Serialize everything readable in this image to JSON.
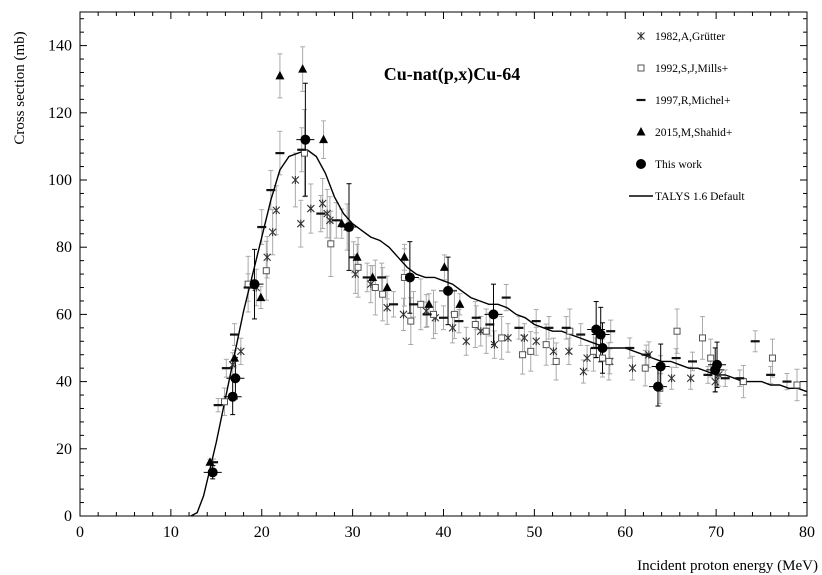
{
  "chart_data": {
    "type": "scatter",
    "title": "Cu-nat(p,x)Cu-64",
    "xlabel": "Incident proton energy (MeV)",
    "ylabel": "Cross section (mb)",
    "xlim": [
      0,
      80
    ],
    "ylim": [
      0,
      150
    ],
    "xticks": [
      "0",
      "10",
      "20",
      "30",
      "40",
      "50",
      "60",
      "70",
      "80"
    ],
    "yticks": [
      "0",
      "20",
      "40",
      "60",
      "80",
      "100",
      "120",
      "140"
    ],
    "grid": false,
    "legend_position": "top-right",
    "series": [
      {
        "name": "1982,A,Grütter",
        "marker": "asterisk",
        "points": [
          [
            16.8,
            45
          ],
          [
            17.7,
            49
          ],
          [
            19.4,
            68
          ],
          [
            20.6,
            77
          ],
          [
            21.2,
            84.5
          ],
          [
            21.6,
            91
          ],
          [
            23.7,
            100
          ],
          [
            24.3,
            87
          ],
          [
            25.4,
            91.5
          ],
          [
            26.7,
            93
          ],
          [
            27.2,
            90
          ],
          [
            27.5,
            88
          ],
          [
            29.4,
            86
          ],
          [
            30.3,
            72
          ],
          [
            32.0,
            69
          ],
          [
            33.8,
            62
          ],
          [
            35.6,
            60
          ],
          [
            38.1,
            61
          ],
          [
            39.1,
            59
          ],
          [
            41.0,
            56
          ],
          [
            42.5,
            52
          ],
          [
            44.1,
            55
          ],
          [
            45.6,
            51
          ],
          [
            47.1,
            53
          ],
          [
            48.9,
            53
          ],
          [
            50.2,
            52
          ],
          [
            52.1,
            49
          ],
          [
            53.8,
            49
          ],
          [
            55.4,
            43
          ],
          [
            55.8,
            47
          ],
          [
            58.3,
            46
          ],
          [
            60.8,
            44
          ],
          [
            62.6,
            48
          ],
          [
            65.1,
            41
          ],
          [
            67.2,
            41
          ],
          [
            69.9,
            40
          ],
          [
            70.3,
            42
          ]
        ]
      },
      {
        "name": "1992,S,J,Mills+",
        "marker": "open-square",
        "points": [
          [
            15.9,
            34
          ],
          [
            18.5,
            69
          ],
          [
            20.5,
            73
          ],
          [
            24.7,
            108
          ],
          [
            27.6,
            81
          ],
          [
            30.6,
            74
          ],
          [
            32.5,
            68
          ],
          [
            33.3,
            66
          ],
          [
            35.7,
            71
          ],
          [
            36.4,
            58
          ],
          [
            37.5,
            63
          ],
          [
            38.9,
            60
          ],
          [
            41.2,
            60
          ],
          [
            43.5,
            57
          ],
          [
            44.7,
            55
          ],
          [
            46.4,
            53
          ],
          [
            48.7,
            48
          ],
          [
            49.6,
            49
          ],
          [
            51.3,
            51
          ],
          [
            52.4,
            46
          ],
          [
            53.9,
            55
          ],
          [
            56.5,
            49
          ],
          [
            57.5,
            47
          ],
          [
            58.2,
            46
          ],
          [
            62.2,
            44
          ],
          [
            63.8,
            38
          ],
          [
            65.7,
            55
          ],
          [
            68.5,
            53
          ],
          [
            69.4,
            47
          ],
          [
            73.0,
            40
          ],
          [
            76.2,
            47
          ],
          [
            78.9,
            39
          ]
        ]
      },
      {
        "name": "1997,R,Michel+",
        "marker": "dash",
        "points": [
          [
            14.7,
            16
          ],
          [
            15.2,
            33
          ],
          [
            16.1,
            44
          ],
          [
            17.0,
            54
          ],
          [
            18.5,
            68
          ],
          [
            20.0,
            86
          ],
          [
            21.0,
            97
          ],
          [
            22.0,
            108
          ],
          [
            24.4,
            109
          ],
          [
            26.5,
            90
          ],
          [
            28.2,
            88
          ],
          [
            30.1,
            77
          ],
          [
            31.6,
            71
          ],
          [
            33.2,
            71
          ],
          [
            34.5,
            63
          ],
          [
            36.7,
            63
          ],
          [
            38.2,
            60
          ],
          [
            40.0,
            59
          ],
          [
            41.7,
            58
          ],
          [
            43.6,
            59
          ],
          [
            45.1,
            57
          ],
          [
            46.9,
            65
          ],
          [
            48.3,
            56
          ],
          [
            50.2,
            58
          ],
          [
            51.6,
            56
          ],
          [
            53.5,
            56
          ],
          [
            55.1,
            54
          ],
          [
            56.7,
            50
          ],
          [
            58.4,
            55
          ],
          [
            60.5,
            50
          ],
          [
            62.3,
            48
          ],
          [
            63.9,
            45
          ],
          [
            65.6,
            47
          ],
          [
            67.4,
            46
          ],
          [
            69.1,
            42
          ],
          [
            71.0,
            41
          ],
          [
            72.6,
            41
          ],
          [
            74.3,
            52
          ],
          [
            76.0,
            42
          ],
          [
            77.8,
            40
          ]
        ]
      },
      {
        "name": "2015,M,Shahid+",
        "marker": "filled-triangle",
        "points": [
          [
            14.3,
            16
          ],
          [
            17.0,
            47
          ],
          [
            19.9,
            65
          ],
          [
            22.0,
            131
          ],
          [
            24.5,
            133
          ],
          [
            26.8,
            112
          ],
          [
            28.8,
            87
          ],
          [
            30.5,
            77
          ],
          [
            32.2,
            71
          ],
          [
            33.8,
            68
          ],
          [
            35.7,
            77
          ],
          [
            38.4,
            63
          ],
          [
            40.1,
            74
          ],
          [
            41.8,
            63
          ]
        ]
      },
      {
        "name": "This work",
        "marker": "filled-circle",
        "points": [
          [
            14.6,
            13
          ],
          [
            16.8,
            35.5
          ],
          [
            17.1,
            41
          ],
          [
            19.2,
            69
          ],
          [
            24.8,
            112
          ],
          [
            29.6,
            86
          ],
          [
            36.3,
            71
          ],
          [
            40.5,
            67
          ],
          [
            45.5,
            60
          ],
          [
            56.8,
            55.5
          ],
          [
            57.3,
            54
          ],
          [
            57.5,
            50
          ],
          [
            63.6,
            38.5
          ],
          [
            63.9,
            44.5
          ],
          [
            69.9,
            43.5
          ],
          [
            70.1,
            45
          ]
        ]
      },
      {
        "name": "TALYS 1.6 Default",
        "marker": "line",
        "points": [
          [
            12.2,
            0
          ],
          [
            12.9,
            1
          ],
          [
            13.6,
            6
          ],
          [
            14.3,
            14
          ],
          [
            15.0,
            22
          ],
          [
            16.0,
            35
          ],
          [
            17.0,
            48
          ],
          [
            18.0,
            61
          ],
          [
            19.0,
            72
          ],
          [
            20.0,
            83
          ],
          [
            21.0,
            94
          ],
          [
            22.0,
            103
          ],
          [
            23.0,
            107
          ],
          [
            24.0,
            108
          ],
          [
            25.0,
            109
          ],
          [
            26.0,
            107
          ],
          [
            27.0,
            102
          ],
          [
            28.0,
            95
          ],
          [
            29.0,
            90
          ],
          [
            30.0,
            87
          ],
          [
            31.0,
            85
          ],
          [
            32.0,
            83
          ],
          [
            33.0,
            82
          ],
          [
            34.0,
            80
          ],
          [
            35.0,
            77
          ],
          [
            36.0,
            74
          ],
          [
            37.0,
            72
          ],
          [
            38.0,
            71
          ],
          [
            39.0,
            71
          ],
          [
            40.0,
            70
          ],
          [
            41.0,
            69
          ],
          [
            42.0,
            67
          ],
          [
            43.0,
            65
          ],
          [
            44.0,
            64
          ],
          [
            45.0,
            63
          ],
          [
            46.0,
            63
          ],
          [
            47.0,
            62
          ],
          [
            48.0,
            60
          ],
          [
            49.0,
            59
          ],
          [
            50.0,
            57
          ],
          [
            51.0,
            56
          ],
          [
            52.0,
            55
          ],
          [
            53.0,
            55
          ],
          [
            54.0,
            54
          ],
          [
            55.0,
            53
          ],
          [
            56.0,
            52
          ],
          [
            57.0,
            51
          ],
          [
            58.0,
            50
          ],
          [
            59.0,
            50
          ],
          [
            60.0,
            50
          ],
          [
            61.0,
            49
          ],
          [
            62.0,
            48
          ],
          [
            63.0,
            47
          ],
          [
            64.0,
            46
          ],
          [
            65.0,
            46
          ],
          [
            66.0,
            45
          ],
          [
            67.0,
            44
          ],
          [
            68.0,
            44
          ],
          [
            69.0,
            43
          ],
          [
            70.0,
            42
          ],
          [
            71.0,
            42
          ],
          [
            72.0,
            41
          ],
          [
            73.0,
            40
          ],
          [
            74.0,
            40
          ],
          [
            75.0,
            40
          ],
          [
            76.0,
            39
          ],
          [
            77.0,
            39
          ],
          [
            78.0,
            38
          ],
          [
            79.0,
            38
          ],
          [
            80.0,
            37
          ]
        ]
      }
    ]
  }
}
